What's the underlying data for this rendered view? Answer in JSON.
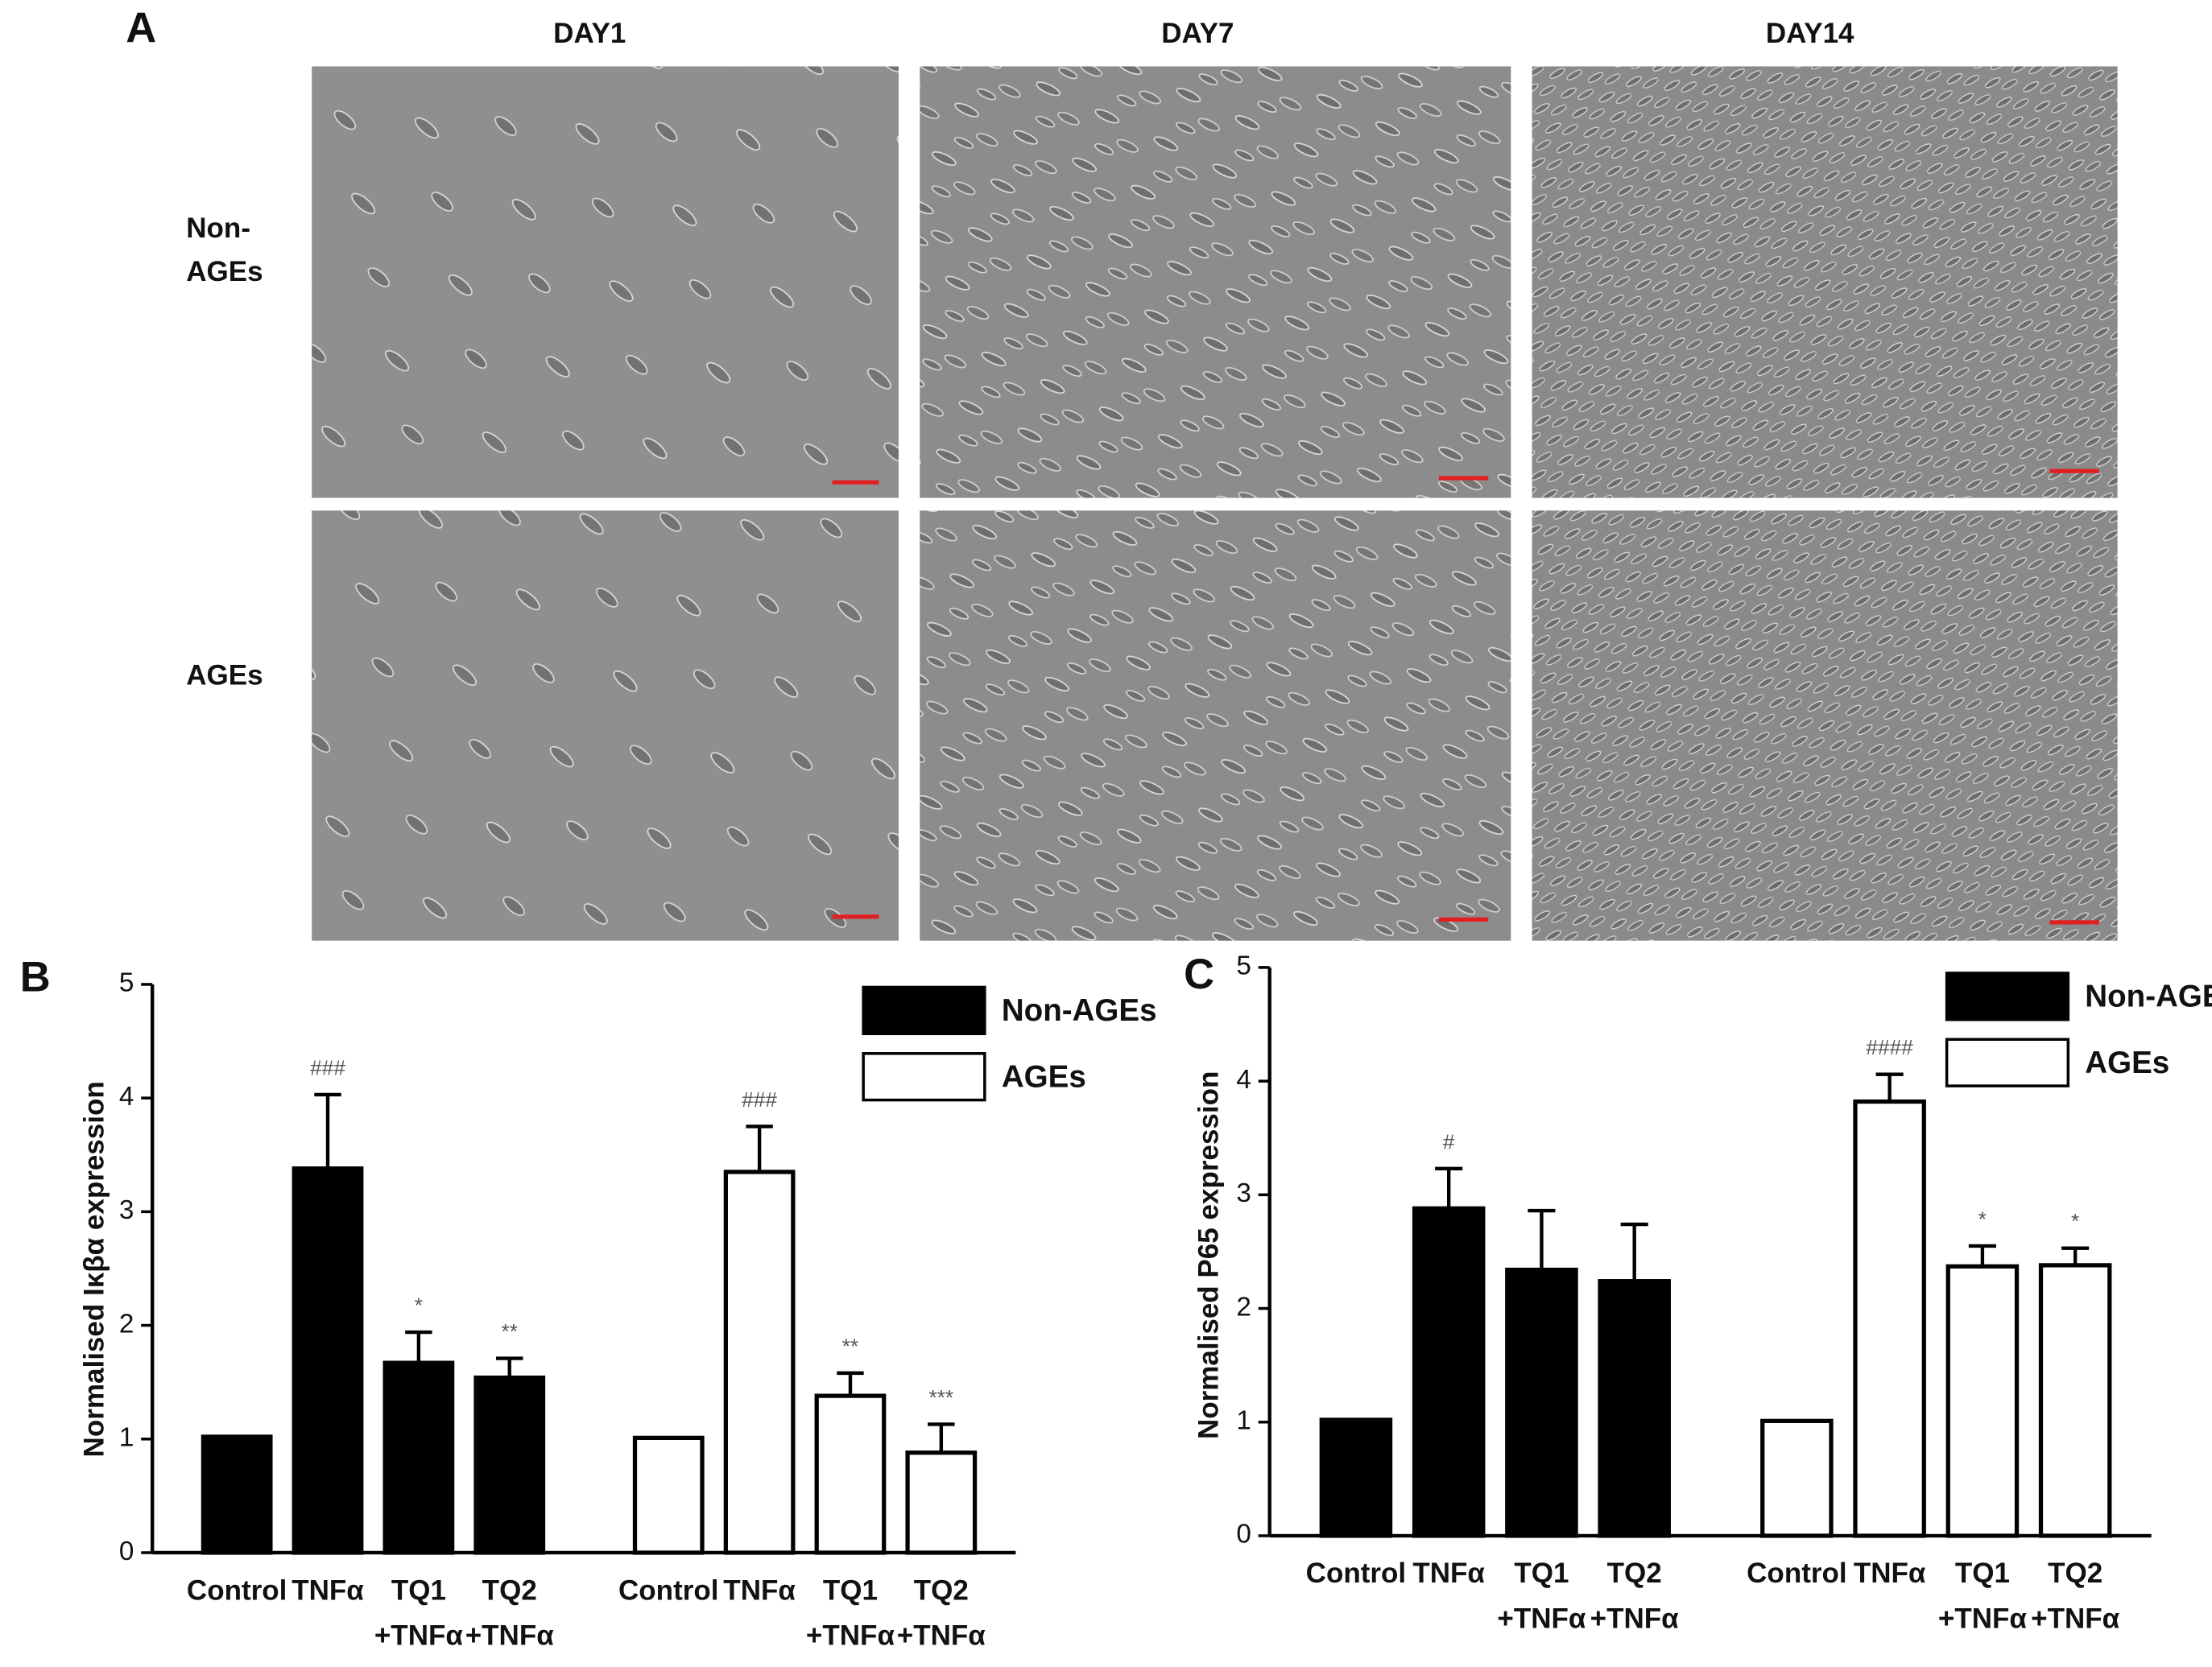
{
  "panel_a": {
    "label": "A",
    "columns": [
      "DAY1",
      "DAY7",
      "DAY14"
    ],
    "rows": [
      [
        "Non-",
        "AGEs"
      ],
      [
        "AGEs"
      ]
    ]
  },
  "chart_data": [
    {
      "type": "bar",
      "panel": "B",
      "ylabel": "Normalised Iκβα expression",
      "categories": [
        [
          "Control"
        ],
        [
          "TNFα"
        ],
        [
          "TQ1",
          "+TNFα"
        ],
        [
          "TQ2",
          "+TNFα"
        ]
      ],
      "ylim": [
        0,
        5
      ],
      "yticks": [
        0,
        1,
        2,
        3,
        4,
        5
      ],
      "legend": "top-right",
      "series": [
        {
          "name": "Non-AGEs",
          "color": "#000000",
          "values": [
            1.02,
            3.38,
            1.67,
            1.54
          ],
          "errors": [
            0,
            0.65,
            0.27,
            0.17
          ],
          "annotations": [
            null,
            "###",
            "*",
            "**"
          ]
        },
        {
          "name": "AGEs",
          "color": "#ffffff",
          "values": [
            1.01,
            3.35,
            1.38,
            0.88
          ],
          "errors": [
            0,
            0.4,
            0.2,
            0.25
          ],
          "annotations": [
            null,
            "###",
            "**",
            "***"
          ]
        }
      ]
    },
    {
      "type": "bar",
      "panel": "C",
      "ylabel": "Normalised P65 expression",
      "categories": [
        [
          "Control"
        ],
        [
          "TNFα"
        ],
        [
          "TQ1",
          "+TNFα"
        ],
        [
          "TQ2",
          "+TNFα"
        ]
      ],
      "ylim": [
        0,
        5
      ],
      "yticks": [
        0,
        1,
        2,
        3,
        4,
        5
      ],
      "legend": "top-right",
      "series": [
        {
          "name": "Non-AGEs",
          "color": "#000000",
          "values": [
            1.02,
            2.88,
            2.34,
            2.24
          ],
          "errors": [
            0,
            0.35,
            0.52,
            0.5
          ],
          "annotations": [
            null,
            "#",
            null,
            null
          ]
        },
        {
          "name": "AGEs",
          "color": "#ffffff",
          "values": [
            1.01,
            3.82,
            2.37,
            2.38
          ],
          "errors": [
            0,
            0.24,
            0.18,
            0.15
          ],
          "annotations": [
            null,
            "####",
            "*",
            "*"
          ]
        }
      ]
    }
  ]
}
